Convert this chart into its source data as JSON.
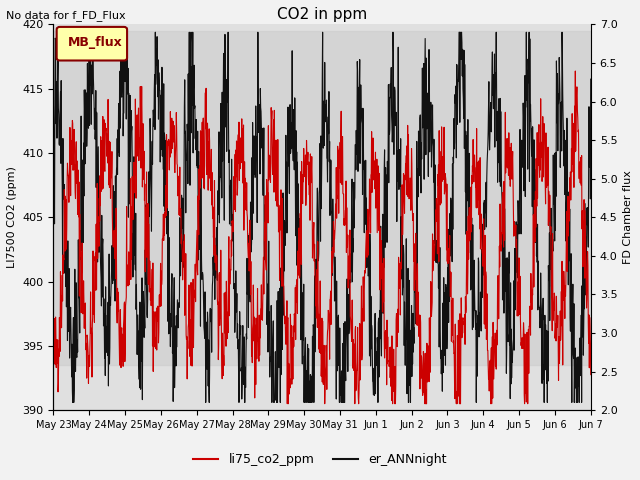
{
  "title": "CO2 in ppm",
  "ylabel_left": "LI7500 CO2 (ppm)",
  "ylabel_right": "FD Chamber flux",
  "annotation_top_left": "No data for f_FD_Flux",
  "legend_box_label": "MB_flux",
  "ylim_left": [
    390,
    420
  ],
  "ylim_right": [
    2.0,
    7.0
  ],
  "yticks_left": [
    390,
    395,
    400,
    405,
    410,
    415,
    420
  ],
  "yticks_right": [
    2.0,
    2.5,
    3.0,
    3.5,
    4.0,
    4.5,
    5.0,
    5.5,
    6.0,
    6.5,
    7.0
  ],
  "xtick_labels": [
    "May 23",
    "May 24",
    "May 25",
    "May 26",
    "May 27",
    "May 28",
    "May 29",
    "May 30",
    "May 31",
    "Jun 1",
    "Jun 2",
    "Jun 3",
    "Jun 4",
    "Jun 5",
    "Jun 6",
    "Jun 7"
  ],
  "color_red": "#cc0000",
  "color_black": "#111111",
  "fig_facecolor": "#f2f2f2",
  "plot_facecolor": "#e0e0e0",
  "shade_color": "#d0d0d0",
  "legend_entries": [
    "li75_co2_ppm",
    "er_ANNnight"
  ],
  "linewidth": 0.8,
  "title_fontsize": 11,
  "label_fontsize": 8,
  "tick_fontsize": 8,
  "annot_fontsize": 8
}
